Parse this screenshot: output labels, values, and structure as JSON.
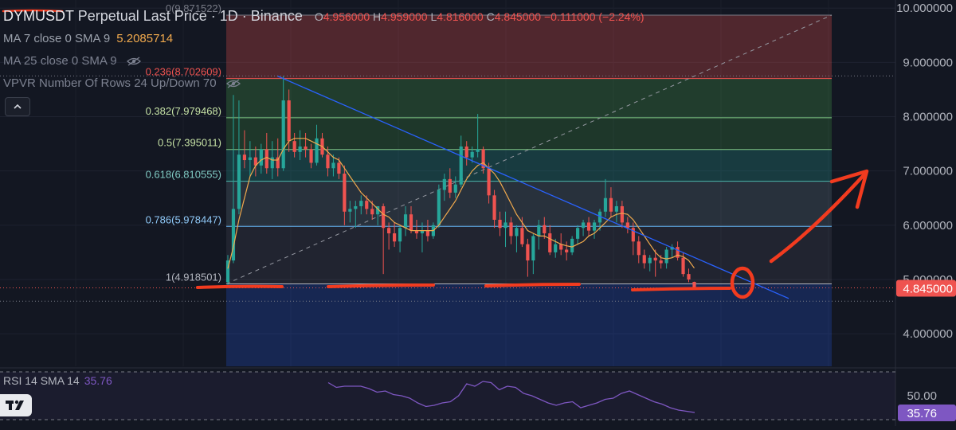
{
  "legend": {
    "symbol": "DYMUSDT",
    "description": "Perpetual Last Price · 1D · Binance",
    "ohlc": [
      {
        "key": "O",
        "value": "4.956000"
      },
      {
        "key": "H",
        "value": "4.959000"
      },
      {
        "key": "L",
        "value": "4.816000"
      },
      {
        "key": "C",
        "value": "4.845000"
      }
    ],
    "change": "−0.111000 (−2.24%)",
    "ma7_label": "MA 7 close 0 SMA 9",
    "ma7_value": "5.2085714",
    "ma25_label": "MA 25 close 0 SMA 9",
    "vpvr_label": "VPVR Number Of Rows 24 Up/Down 70",
    "rsi_label": "RSI 14 SMA 14",
    "rsi_value": "35.76"
  },
  "colors": {
    "background": "#131722",
    "up": "#26a69a",
    "down": "#ef5350",
    "ma7": "#f0a94d",
    "trendline": "#2962ff",
    "annotation": "#f23b1f",
    "rsi": "#7e57c2"
  },
  "chart_data": {
    "type": "candlestick",
    "symbol": "DYMUSDT",
    "timeframe": "1D",
    "y_axis": {
      "ylim": [
        3.4,
        10.15
      ],
      "ticks": [
        10.0,
        9.0,
        8.0,
        7.0,
        6.0,
        5.0,
        4.0
      ],
      "tick_labels": [
        "10.000000",
        "9.000000",
        "8.000000",
        "7.000000",
        "6.000000",
        "5.000000",
        "4.000000"
      ],
      "price_label": "4.845000"
    },
    "fibonacci": {
      "levels": [
        {
          "ratio": 0,
          "price": 9.871522,
          "label": "0(9.871522)"
        },
        {
          "ratio": 0.236,
          "price": 8.702609,
          "label": "0.236(8.702609)"
        },
        {
          "ratio": 0.382,
          "price": 7.979468,
          "label": "0.382(7.979468)"
        },
        {
          "ratio": 0.5,
          "price": 7.395011,
          "label": "0.5(7.395011)"
        },
        {
          "ratio": 0.618,
          "price": 6.810555,
          "label": "0.618(6.810555)"
        },
        {
          "ratio": 0.786,
          "price": 5.978447,
          "label": "0.786(5.978447)"
        },
        {
          "ratio": 1,
          "price": 4.918501,
          "label": "1(4.918501)"
        }
      ]
    },
    "candles": [
      [
        4.95,
        5.45,
        4.9,
        5.35
      ],
      [
        5.35,
        8.4,
        5.3,
        6.3
      ],
      [
        6.3,
        8.3,
        6.2,
        7.3
      ],
      [
        7.3,
        7.75,
        7.05,
        7.2
      ],
      [
        7.2,
        7.55,
        6.9,
        7.25
      ],
      [
        7.25,
        7.45,
        6.9,
        7.1
      ],
      [
        7.1,
        7.5,
        6.95,
        7.4
      ],
      [
        7.4,
        7.7,
        6.95,
        7.05
      ],
      [
        7.05,
        7.55,
        6.85,
        7.25
      ],
      [
        7.25,
        7.6,
        6.9,
        7.05
      ],
      [
        7.05,
        8.75,
        7.0,
        8.3
      ],
      [
        8.3,
        8.5,
        7.35,
        7.55
      ],
      [
        7.55,
        7.7,
        7.25,
        7.35
      ],
      [
        7.35,
        7.75,
        7.2,
        7.45
      ],
      [
        7.45,
        7.7,
        7.25,
        7.4
      ],
      [
        7.4,
        7.5,
        7.05,
        7.15
      ],
      [
        7.15,
        7.85,
        7.1,
        7.6
      ],
      [
        7.6,
        7.7,
        7.25,
        7.3
      ],
      [
        7.3,
        7.45,
        6.9,
        7.05
      ],
      [
        7.05,
        7.3,
        6.9,
        7.15
      ],
      [
        7.15,
        7.25,
        6.85,
        6.95
      ],
      [
        6.95,
        7.1,
        6.0,
        6.25
      ],
      [
        6.25,
        6.45,
        6.05,
        6.3
      ],
      [
        6.3,
        6.45,
        5.95,
        6.35
      ],
      [
        6.35,
        6.55,
        6.2,
        6.45
      ],
      [
        6.45,
        6.55,
        6.2,
        6.3
      ],
      [
        6.3,
        6.45,
        6.1,
        6.2
      ],
      [
        6.2,
        6.35,
        6.0,
        6.35
      ],
      [
        6.35,
        6.4,
        5.1,
        5.95
      ],
      [
        5.95,
        6.05,
        5.55,
        5.85
      ],
      [
        5.85,
        6.05,
        5.6,
        5.7
      ],
      [
        5.7,
        6.0,
        5.5,
        5.95
      ],
      [
        5.95,
        6.35,
        5.8,
        6.2
      ],
      [
        6.2,
        6.35,
        5.85,
        5.9
      ],
      [
        5.9,
        6.1,
        5.75,
        5.85
      ],
      [
        5.85,
        6.05,
        5.5,
        5.9
      ],
      [
        5.9,
        6.1,
        5.7,
        5.8
      ],
      [
        5.8,
        6.05,
        5.75,
        6.0
      ],
      [
        6.0,
        6.75,
        5.95,
        6.65
      ],
      [
        6.65,
        6.95,
        6.45,
        6.85
      ],
      [
        6.85,
        7.05,
        6.5,
        6.6
      ],
      [
        6.6,
        6.9,
        6.5,
        6.75
      ],
      [
        6.75,
        7.65,
        6.7,
        7.45
      ],
      [
        7.45,
        7.55,
        7.1,
        7.25
      ],
      [
        7.25,
        7.45,
        7.15,
        7.35
      ],
      [
        7.35,
        8.05,
        7.25,
        7.4
      ],
      [
        7.4,
        7.45,
        6.95,
        7.05
      ],
      [
        7.05,
        7.15,
        6.4,
        6.55
      ],
      [
        6.55,
        6.65,
        5.95,
        6.1
      ],
      [
        6.1,
        6.25,
        5.8,
        5.95
      ],
      [
        5.95,
        6.25,
        5.6,
        6.05
      ],
      [
        6.05,
        6.15,
        5.65,
        5.8
      ],
      [
        5.8,
        6.0,
        5.5,
        5.95
      ],
      [
        5.95,
        6.15,
        5.6,
        5.65
      ],
      [
        5.65,
        5.75,
        5.05,
        5.35
      ],
      [
        5.35,
        5.85,
        5.1,
        5.8
      ],
      [
        5.8,
        6.1,
        5.55,
        6.0
      ],
      [
        6.0,
        6.15,
        5.75,
        5.85
      ],
      [
        5.85,
        6.0,
        5.45,
        5.5
      ],
      [
        5.5,
        5.75,
        5.4,
        5.65
      ],
      [
        5.65,
        5.85,
        5.45,
        5.55
      ],
      [
        5.55,
        5.7,
        5.35,
        5.5
      ],
      [
        5.5,
        5.8,
        5.45,
        5.75
      ],
      [
        5.75,
        6.0,
        5.65,
        5.95
      ],
      [
        5.95,
        6.1,
        5.8,
        6.05
      ],
      [
        6.05,
        6.15,
        5.8,
        5.9
      ],
      [
        5.9,
        6.1,
        5.75,
        6.05
      ],
      [
        6.05,
        6.3,
        5.9,
        6.25
      ],
      [
        6.25,
        6.85,
        6.15,
        6.5
      ],
      [
        6.5,
        6.7,
        6.15,
        6.25
      ],
      [
        6.25,
        6.45,
        6.05,
        6.35
      ],
      [
        6.35,
        6.45,
        5.95,
        6.05
      ],
      [
        6.05,
        6.15,
        5.85,
        5.95
      ],
      [
        5.95,
        6.05,
        5.45,
        5.7
      ],
      [
        5.7,
        5.8,
        5.3,
        5.45
      ],
      [
        5.45,
        5.55,
        5.2,
        5.3
      ],
      [
        5.3,
        5.45,
        5.15,
        5.4
      ],
      [
        5.4,
        5.55,
        5.05,
        5.35
      ],
      [
        5.35,
        5.45,
        5.2,
        5.3
      ],
      [
        5.3,
        5.6,
        5.2,
        5.55
      ],
      [
        5.55,
        5.65,
        5.4,
        5.6
      ],
      [
        5.6,
        5.7,
        5.35,
        5.4
      ],
      [
        5.4,
        5.5,
        5.05,
        5.1
      ],
      [
        5.1,
        5.2,
        4.95,
        5.0
      ],
      [
        4.956,
        4.959,
        4.816,
        4.845
      ]
    ],
    "ma7": [
      5.2,
      5.6,
      6.1,
      6.5,
      6.9,
      7.1,
      7.2,
      7.25,
      7.2,
      7.2,
      7.4,
      7.55,
      7.6,
      7.6,
      7.6,
      7.55,
      7.5,
      7.45,
      7.35,
      7.25,
      7.2,
      7.05,
      6.9,
      6.75,
      6.6,
      6.5,
      6.4,
      6.3,
      6.2,
      6.15,
      6.05,
      6.0,
      5.95,
      5.9,
      5.9,
      5.9,
      5.9,
      5.9,
      6.0,
      6.15,
      6.3,
      6.45,
      6.65,
      6.85,
      7.0,
      7.1,
      7.15,
      7.05,
      6.95,
      6.8,
      6.6,
      6.4,
      6.2,
      6.05,
      5.9,
      5.85,
      5.8,
      5.8,
      5.75,
      5.7,
      5.65,
      5.62,
      5.6,
      5.65,
      5.7,
      5.8,
      5.85,
      5.95,
      6.05,
      6.15,
      6.2,
      6.22,
      6.2,
      6.1,
      5.95,
      5.8,
      5.65,
      5.5,
      5.4,
      5.38,
      5.4,
      5.45,
      5.42,
      5.35,
      5.21
    ],
    "rsi": {
      "value": 35.76,
      "tick_label": "50.00",
      "series": [
        61,
        57,
        58,
        58,
        58,
        56,
        53,
        54,
        51,
        50,
        48,
        44,
        41,
        42,
        44,
        45,
        50,
        60,
        58,
        62,
        61,
        55,
        58,
        57,
        52,
        50,
        47,
        44,
        42,
        44,
        45,
        40,
        42,
        44,
        47,
        48,
        52,
        54,
        51,
        48,
        45,
        43,
        40,
        38,
        37,
        36
      ]
    }
  },
  "annotations": {
    "note": "hand-drawn red support lines, circle at breakout point and upward arrow"
  }
}
